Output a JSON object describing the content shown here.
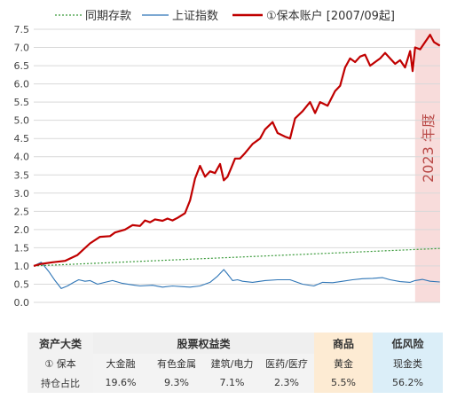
{
  "chart_data": {
    "type": "line",
    "legend": {
      "position": "top",
      "entries": [
        {
          "name": "同期存款",
          "color": "#3a9a3a",
          "style": "dotted"
        },
        {
          "name": "上证指数",
          "color": "#2e75b6",
          "style": "solid"
        },
        {
          "name": "①保本账户 [2007/09起]",
          "color": "#c00000",
          "style": "solid-thick"
        }
      ]
    },
    "ylim": [
      0,
      7.5
    ],
    "ytick_labels": [
      "0.0",
      "0.5",
      "1.0",
      "1.5",
      "2.0",
      "2.5",
      "3.0",
      "3.5",
      "4.0",
      "4.5",
      "5.0",
      "5.5",
      "6.0",
      "6.5",
      "7.0",
      "7.5"
    ],
    "x_period": [
      "2007-09",
      "2023-12"
    ],
    "grid": "horizontal",
    "highlight": {
      "label": "2023 年度",
      "start": 2023.0,
      "end": 2024.0
    },
    "series": [
      {
        "name": "同期存款",
        "color": "#3a9a3a",
        "x": [
          2007.75,
          2023.99
        ],
        "y": [
          1.0,
          1.48
        ]
      },
      {
        "name": "上证指数",
        "color": "#2e75b6",
        "x": [
          2007.75,
          2008.05,
          2008.35,
          2008.6,
          2008.85,
          2009.1,
          2009.35,
          2009.55,
          2009.8,
          2010.0,
          2010.3,
          2010.6,
          2010.9,
          2011.3,
          2011.7,
          2012.0,
          2012.5,
          2012.9,
          2013.3,
          2013.7,
          2014.0,
          2014.4,
          2014.8,
          2015.1,
          2015.35,
          2015.5,
          2015.7,
          2015.9,
          2016.1,
          2016.5,
          2017.0,
          2017.5,
          2018.0,
          2018.5,
          2018.95,
          2019.3,
          2019.7,
          2020.1,
          2020.5,
          2020.9,
          2021.3,
          2021.7,
          2022.0,
          2022.4,
          2022.8,
          2023.0,
          2023.3,
          2023.6,
          2023.99
        ],
        "y": [
          1.0,
          1.1,
          0.85,
          0.6,
          0.38,
          0.45,
          0.55,
          0.62,
          0.58,
          0.6,
          0.5,
          0.55,
          0.6,
          0.52,
          0.48,
          0.45,
          0.47,
          0.42,
          0.45,
          0.43,
          0.42,
          0.45,
          0.55,
          0.72,
          0.9,
          0.78,
          0.6,
          0.62,
          0.58,
          0.55,
          0.6,
          0.62,
          0.62,
          0.5,
          0.45,
          0.55,
          0.54,
          0.58,
          0.62,
          0.65,
          0.66,
          0.68,
          0.62,
          0.57,
          0.55,
          0.6,
          0.63,
          0.58,
          0.56
        ]
      },
      {
        "name": "①保本账户 [2007/09起]",
        "color": "#c00000",
        "x": [
          2007.75,
          2008.0,
          2008.5,
          2009.0,
          2009.5,
          2010.0,
          2010.4,
          2010.8,
          2011.0,
          2011.4,
          2011.7,
          2012.0,
          2012.2,
          2012.4,
          2012.6,
          2012.9,
          2013.1,
          2013.3,
          2013.5,
          2013.8,
          2014.0,
          2014.2,
          2014.4,
          2014.6,
          2014.8,
          2015.0,
          2015.2,
          2015.35,
          2015.5,
          2015.65,
          2015.8,
          2016.0,
          2016.2,
          2016.5,
          2016.8,
          2017.0,
          2017.3,
          2017.5,
          2017.8,
          2018.0,
          2018.2,
          2018.5,
          2018.8,
          2019.0,
          2019.2,
          2019.5,
          2019.8,
          2020.0,
          2020.2,
          2020.4,
          2020.6,
          2020.8,
          2021.0,
          2021.2,
          2021.4,
          2021.6,
          2021.8,
          2022.0,
          2022.2,
          2022.4,
          2022.6,
          2022.8,
          2022.9,
          2023.0,
          2023.2,
          2023.4,
          2023.6,
          2023.75,
          2023.99
        ],
        "y": [
          1.0,
          1.05,
          1.1,
          1.14,
          1.3,
          1.62,
          1.8,
          1.82,
          1.92,
          2.0,
          2.12,
          2.1,
          2.25,
          2.2,
          2.28,
          2.24,
          2.3,
          2.25,
          2.32,
          2.45,
          2.8,
          3.4,
          3.75,
          3.45,
          3.6,
          3.55,
          3.8,
          3.35,
          3.45,
          3.7,
          3.95,
          3.95,
          4.1,
          4.35,
          4.5,
          4.75,
          4.95,
          4.65,
          4.55,
          4.5,
          5.05,
          5.25,
          5.5,
          5.2,
          5.5,
          5.4,
          5.8,
          5.95,
          6.45,
          6.7,
          6.6,
          6.75,
          6.8,
          6.5,
          6.6,
          6.7,
          6.85,
          6.7,
          6.55,
          6.65,
          6.45,
          6.9,
          6.35,
          7.0,
          6.95,
          7.15,
          7.35,
          7.15,
          7.05
        ]
      }
    ]
  },
  "allocation_table": {
    "row_header": {
      "category": "资产大类",
      "account": "① 保本",
      "weight": "持仓占比"
    },
    "groups": [
      {
        "name": "股票权益类",
        "span": 4
      },
      {
        "name": "商品",
        "span": 1
      },
      {
        "name": "低风险",
        "span": 1
      }
    ],
    "assets": [
      "大金融",
      "有色金属",
      "建筑/电力",
      "医药/医疗",
      "黄金",
      "现金类"
    ],
    "weights": [
      "19.6%",
      "9.3%",
      "7.1%",
      "2.3%",
      "5.5%",
      "56.2%"
    ]
  }
}
